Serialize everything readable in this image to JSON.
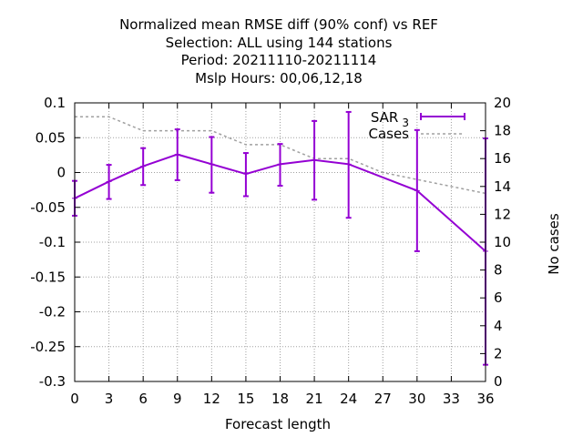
{
  "chart_data": {
    "type": "line",
    "title_lines": [
      "Normalized mean RMSE diff (90% conf) vs REF",
      "Selection: ALL using   144 stations",
      "Period: 20211110-20211114",
      "Mslp   Hours:  00,06,12,18"
    ],
    "xlabel": "Forecast length",
    "ylabel": "",
    "y2label": "No cases",
    "xlim": [
      0,
      36
    ],
    "ylim": [
      -0.3,
      0.1
    ],
    "y2lim": [
      0,
      20
    ],
    "x_ticks": [
      0,
      3,
      6,
      9,
      12,
      15,
      18,
      21,
      24,
      27,
      30,
      33,
      36
    ],
    "y_tick_labels": [
      "0.1",
      "0.05",
      "0",
      "-0.05",
      "-0.1",
      "-0.15",
      "-0.2",
      "-0.25",
      "-0.3"
    ],
    "y_ticks": [
      0.1,
      0.05,
      0,
      -0.05,
      -0.1,
      -0.15,
      -0.2,
      -0.25,
      -0.3
    ],
    "y2_ticks": [
      0,
      2,
      4,
      6,
      8,
      10,
      12,
      14,
      16,
      18,
      20
    ],
    "grid": true,
    "legend_position": "top-right",
    "series": [
      {
        "name": "SAR",
        "name_subscript": "3",
        "kind": "line-errorbars",
        "color": "#9400d3",
        "x": [
          0,
          3,
          6,
          9,
          12,
          15,
          18,
          21,
          24,
          30,
          36
        ],
        "y": [
          -0.037,
          -0.013,
          0.009,
          0.026,
          0.012,
          -0.002,
          0.012,
          0.018,
          0.012,
          -0.026,
          -0.113
        ],
        "y_low": [
          -0.062,
          -0.038,
          -0.018,
          -0.011,
          -0.029,
          -0.034,
          -0.019,
          -0.039,
          -0.065,
          -0.113,
          -0.276
        ],
        "y_high": [
          -0.012,
          0.011,
          0.035,
          0.062,
          0.051,
          0.028,
          0.041,
          0.074,
          0.087,
          0.061,
          0.049
        ]
      },
      {
        "name": "Cases",
        "kind": "dashed-line",
        "axis": "y2",
        "color": "#a0a0a0",
        "x": [
          0,
          3,
          6,
          9,
          12,
          15,
          18,
          21,
          24,
          27,
          30,
          33,
          36
        ],
        "y": [
          19,
          19,
          18,
          18,
          18,
          17,
          17,
          16,
          16,
          15,
          14.5,
          14,
          13.5
        ]
      }
    ]
  }
}
